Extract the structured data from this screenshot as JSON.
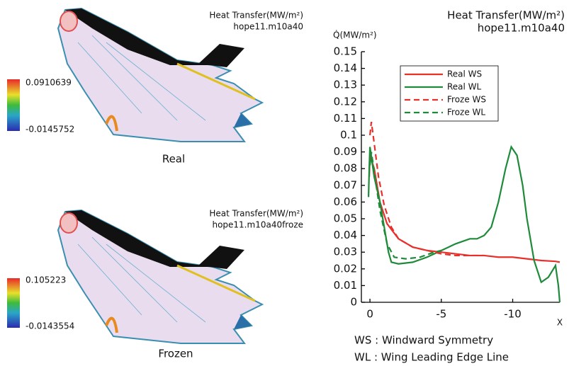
{
  "panels": [
    {
      "title": "Heat Transfer(MW/m²)",
      "run": "hope11.m10a40",
      "colorbar": {
        "max": 0.0910639,
        "min": -0.0145752
      },
      "label": "Real"
    },
    {
      "title": "Heat Transfer(MW/m²)",
      "run": "hope11.m10a40froze",
      "colorbar": {
        "max": 0.105223,
        "min": -0.0143554
      },
      "label": "Frozen"
    }
  ],
  "chart_data": {
    "type": "line",
    "title": "Heat Transfer(MW/m²)",
    "subtitle": "hope11.m10a40",
    "y_label": "Q̇(MW/m²)",
    "x_label": "X",
    "xlim": [
      0.6,
      -13.3
    ],
    "xticks": [
      0,
      -5,
      -10
    ],
    "ylim": [
      0,
      0.15
    ],
    "yticks": [
      0,
      0.01,
      0.02,
      0.03,
      0.04,
      0.05,
      0.06,
      0.07,
      0.08,
      0.09,
      0.1,
      0.11,
      0.12,
      0.13,
      0.14,
      0.15
    ],
    "legend": "upper right",
    "series": [
      {
        "name": "Real WS",
        "color": "#e8302a",
        "dash": false,
        "x": [
          0.05,
          0,
          -0.3,
          -0.7,
          -1.2,
          -2,
          -3,
          -4,
          -5,
          -6,
          -7,
          -8,
          -9,
          -10,
          -11,
          -12,
          -13,
          -13.3
        ],
        "values": [
          0.075,
          0.088,
          0.08,
          0.06,
          0.047,
          0.038,
          0.033,
          0.031,
          0.03,
          0.029,
          0.028,
          0.028,
          0.027,
          0.027,
          0.026,
          0.025,
          0.0245,
          0.024
        ]
      },
      {
        "name": "Real WL",
        "color": "#1e8a3a",
        "dash": false,
        "x": [
          0.1,
          0.05,
          0,
          -0.3,
          -0.7,
          -1,
          -1.3,
          -1.5,
          -2,
          -3,
          -4,
          -5,
          -6,
          -7,
          -7.5,
          -8,
          -8.5,
          -9,
          -9.5,
          -9.9,
          -10.3,
          -10.7,
          -11,
          -11.5,
          -12,
          -12.5,
          -13,
          -13.2,
          -13.3
        ],
        "values": [
          0.063,
          0.08,
          0.093,
          0.075,
          0.06,
          0.045,
          0.03,
          0.024,
          0.023,
          0.024,
          0.027,
          0.031,
          0.035,
          0.038,
          0.038,
          0.04,
          0.045,
          0.06,
          0.08,
          0.093,
          0.088,
          0.07,
          0.05,
          0.025,
          0.012,
          0.015,
          0.022,
          0.01,
          0
        ]
      },
      {
        "name": "Froze WS",
        "color": "#e8302a",
        "dash": true,
        "x": [
          0,
          -0.1,
          -0.3,
          -0.6,
          -1,
          -1.5,
          -2,
          -3,
          -4,
          -5,
          -6,
          -8
        ],
        "values": [
          0.1,
          0.108,
          0.095,
          0.075,
          0.058,
          0.045,
          0.038,
          0.033,
          0.031,
          0.029,
          0.028,
          0.028
        ]
      },
      {
        "name": "Froze WL",
        "color": "#1e8a3a",
        "dash": true,
        "x": [
          0,
          -0.1,
          -0.3,
          -0.7,
          -1.2,
          -1.7,
          -2.5,
          -3.5,
          -4.5,
          -5
        ],
        "values": [
          0.082,
          0.09,
          0.078,
          0.055,
          0.035,
          0.027,
          0.026,
          0.027,
          0.03,
          0.031
        ]
      }
    ],
    "notes": [
      "WS : Windward Symmetry",
      "WL : Wing Leading Edge Line"
    ]
  }
}
